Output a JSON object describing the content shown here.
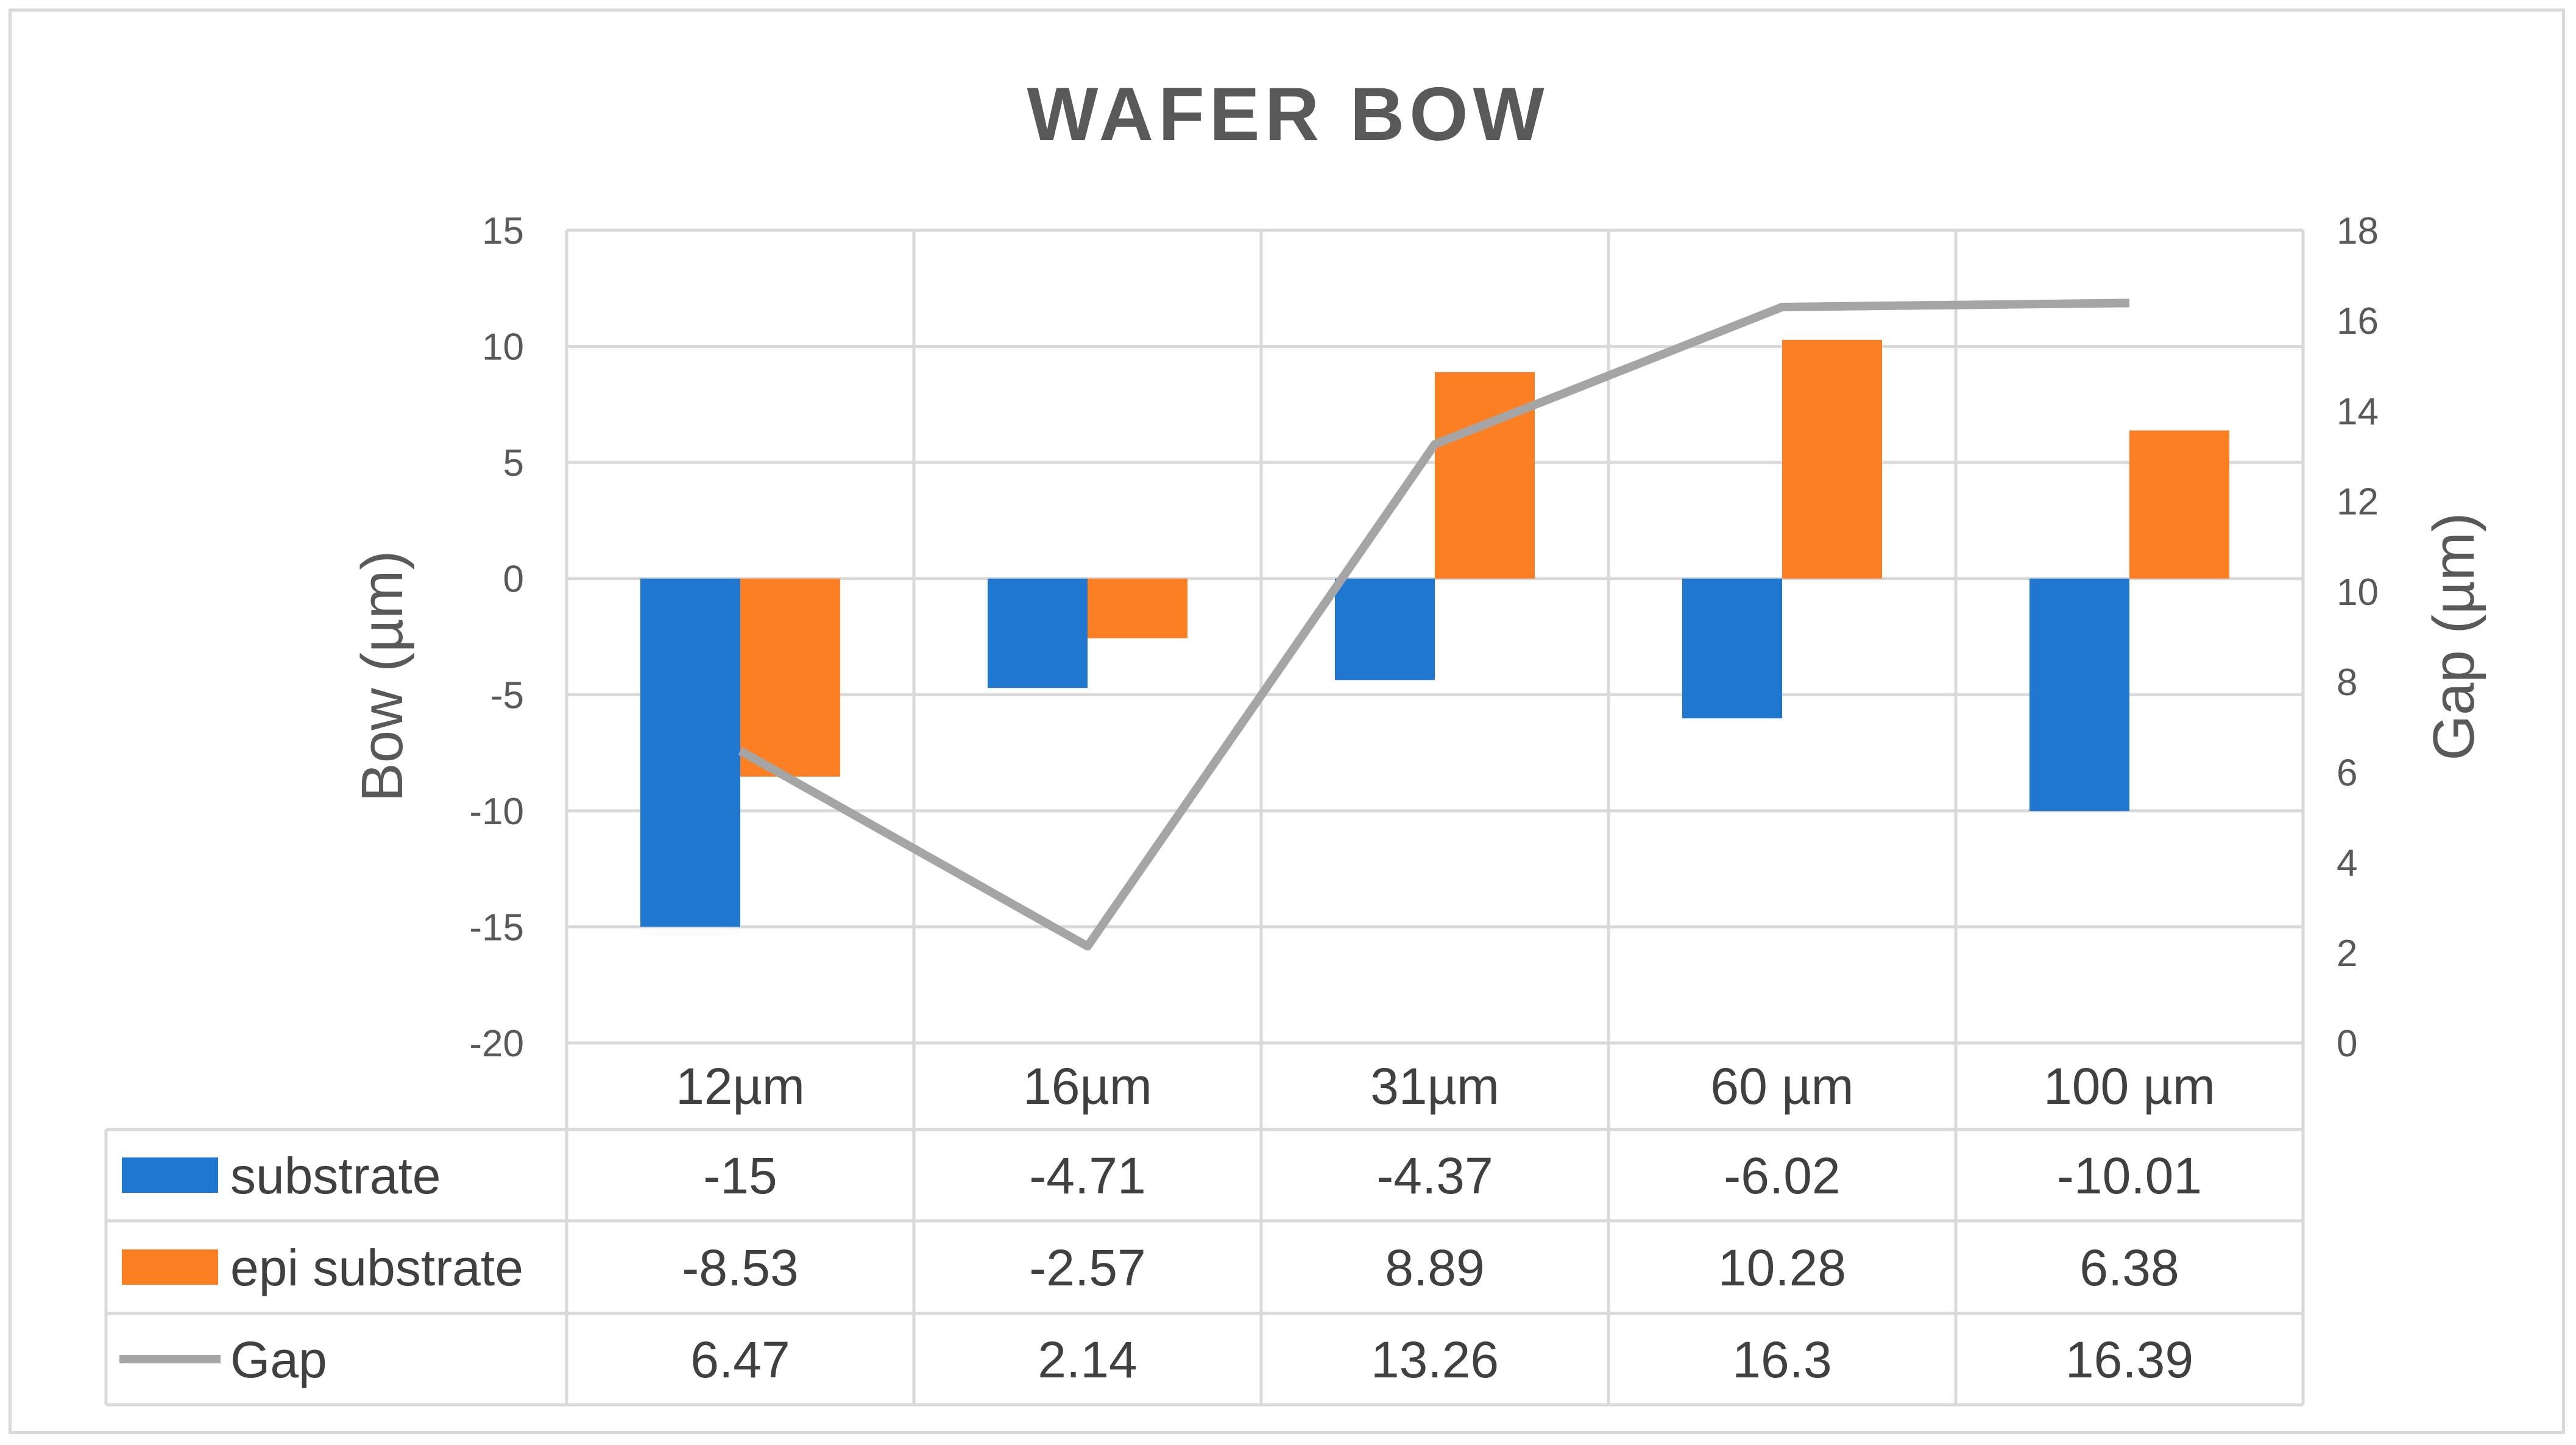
{
  "chart_data": {
    "type": "bar",
    "title": "WAFER BOW",
    "categories": [
      "12µm",
      "16µm",
      "31µm",
      "60 µm",
      "100 µm"
    ],
    "series": [
      {
        "name": "substrate",
        "kind": "bar",
        "axis": "left",
        "color": "#1f77d0",
        "values": [
          -15,
          -4.71,
          -4.37,
          -6.02,
          -10.01
        ]
      },
      {
        "name": "epi substrate",
        "kind": "bar",
        "axis": "left",
        "color": "#fd7f23",
        "values": [
          -8.53,
          -2.57,
          8.89,
          10.28,
          6.38
        ]
      },
      {
        "name": "Gap",
        "kind": "line",
        "axis": "right",
        "color": "#a5a5a5",
        "values": [
          6.47,
          2.14,
          13.26,
          16.3,
          16.39
        ]
      }
    ],
    "ylabel": "Bow (µm)",
    "y2label": "Gap (µm)",
    "ylim": [
      -20,
      15
    ],
    "yticks": [
      "15",
      "10",
      "5",
      "0",
      "-5",
      "-10",
      "-15",
      "-20"
    ],
    "y2lim": [
      0,
      18
    ],
    "y2ticks": [
      "18",
      "16",
      "14",
      "12",
      "10",
      "8",
      "6",
      "4",
      "2",
      "0"
    ],
    "data_table": {
      "rows": [
        {
          "series": "substrate",
          "cells": [
            "-15",
            "-4.71",
            "-4.37",
            "-6.02",
            "-10.01"
          ]
        },
        {
          "series": "epi substrate",
          "cells": [
            "-8.53",
            "-2.57",
            "8.89",
            "10.28",
            "6.38"
          ]
        },
        {
          "series": "Gap",
          "cells": [
            "6.47",
            "2.14",
            "13.26",
            "16.3",
            "16.39"
          ]
        }
      ]
    },
    "grid": true,
    "legend": "in data table"
  }
}
